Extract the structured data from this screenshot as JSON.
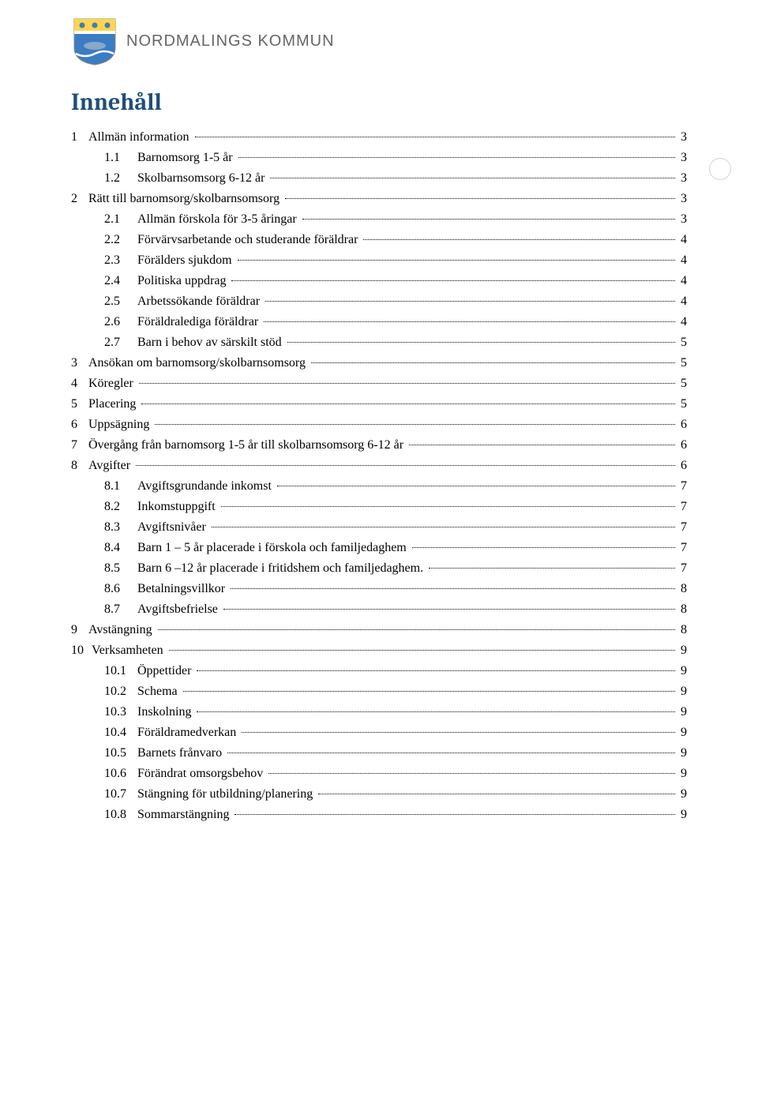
{
  "colors": {
    "title_color": "#1f4e79",
    "org_text_color": "#666666",
    "text_color": "#000000",
    "background": "#ffffff",
    "shield_top": "#FFD54A",
    "shield_bottom": "#3B7CC4",
    "shield_wave": "#FFFFFF"
  },
  "header": {
    "org_name": "NORDMALINGS KOMMUN"
  },
  "toc": {
    "title": "Innehåll",
    "entries": [
      {
        "num": "1",
        "label": "Allmän information",
        "page": "3",
        "level": 1
      },
      {
        "num": "1.1",
        "label": "Barnomsorg 1-5 år",
        "page": "3",
        "level": 2
      },
      {
        "num": "1.2",
        "label": "Skolbarnsomsorg 6-12 år",
        "page": "3",
        "level": 2
      },
      {
        "num": "2",
        "label": "Rätt till barnomsorg/skolbarnsomsorg",
        "page": "3",
        "level": 1
      },
      {
        "num": "2.1",
        "label": "Allmän förskola för 3-5 åringar",
        "page": "3",
        "level": 2
      },
      {
        "num": "2.2",
        "label": "Förvärvsarbetande och studerande föräldrar",
        "page": "4",
        "level": 2
      },
      {
        "num": "2.3",
        "label": "Förälders sjukdom",
        "page": "4",
        "level": 2
      },
      {
        "num": "2.4",
        "label": "Politiska uppdrag",
        "page": "4",
        "level": 2
      },
      {
        "num": "2.5",
        "label": "Arbetssökande föräldrar",
        "page": "4",
        "level": 2
      },
      {
        "num": "2.6",
        "label": "Föräldralediga föräldrar",
        "page": "4",
        "level": 2
      },
      {
        "num": "2.7",
        "label": "Barn i behov av särskilt stöd",
        "page": "5",
        "level": 2
      },
      {
        "num": "3",
        "label": "Ansökan om barnomsorg/skolbarnsomsorg",
        "page": "5",
        "level": 1
      },
      {
        "num": "4",
        "label": "Köregler",
        "page": "5",
        "level": 1
      },
      {
        "num": "5",
        "label": "Placering",
        "page": "5",
        "level": 1
      },
      {
        "num": "6",
        "label": "Uppsägning",
        "page": "6",
        "level": 1
      },
      {
        "num": "7",
        "label": "Övergång från barnomsorg 1-5 år till skolbarnsomsorg 6-12 år",
        "page": "6",
        "level": 1
      },
      {
        "num": "8",
        "label": "Avgifter",
        "page": "6",
        "level": 1
      },
      {
        "num": "8.1",
        "label": "Avgiftsgrundande inkomst",
        "page": "7",
        "level": 2
      },
      {
        "num": "8.2",
        "label": "Inkomstuppgift",
        "page": "7",
        "level": 2
      },
      {
        "num": "8.3",
        "label": "Avgiftsnivåer",
        "page": "7",
        "level": 2
      },
      {
        "num": "8.4",
        "label": "Barn 1 – 5 år placerade i förskola och familjedaghem",
        "page": "7",
        "level": 2
      },
      {
        "num": "8.5",
        "label": "Barn 6 –12 år placerade i fritidshem och familjedaghem.",
        "page": "7",
        "level": 2
      },
      {
        "num": "8.6",
        "label": "Betalningsvillkor",
        "page": "8",
        "level": 2
      },
      {
        "num": "8.7",
        "label": "Avgiftsbefrielse",
        "page": "8",
        "level": 2
      },
      {
        "num": "9",
        "label": "Avstängning",
        "page": "8",
        "level": 1
      },
      {
        "num": "10",
        "label": "Verksamheten",
        "page": "9",
        "level": 1
      },
      {
        "num": "10.1",
        "label": "Öppettider",
        "page": "9",
        "level": 2
      },
      {
        "num": "10.2",
        "label": "Schema",
        "page": "9",
        "level": 2
      },
      {
        "num": "10.3",
        "label": "Inskolning",
        "page": "9",
        "level": 2
      },
      {
        "num": "10.4",
        "label": "Föräldramedverkan",
        "page": "9",
        "level": 2
      },
      {
        "num": "10.5",
        "label": "Barnets frånvaro",
        "page": "9",
        "level": 2
      },
      {
        "num": "10.6",
        "label": "Förändrat omsorgsbehov",
        "page": "9",
        "level": 2
      },
      {
        "num": "10.7",
        "label": "Stängning för utbildning/planering",
        "page": "9",
        "level": 2
      },
      {
        "num": "10.8",
        "label": "Sommarstängning",
        "page": "9",
        "level": 2
      }
    ]
  }
}
